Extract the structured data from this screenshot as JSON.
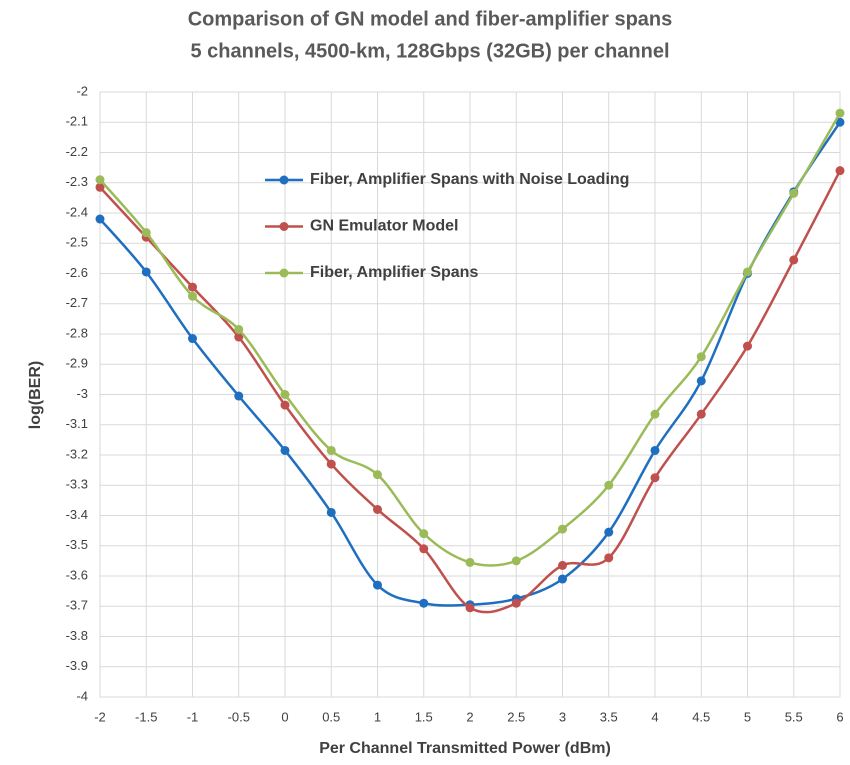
{
  "chart_data": {
    "type": "line",
    "title": "Comparison of GN model and fiber-amplifier spans",
    "subtitle": "5 channels, 4500-km, 128Gbps (32GB) per channel",
    "x_label": "Per Channel Transmitted Power (dBm)",
    "y_label": "log(BER)",
    "x": [
      -2,
      -1.5,
      -1,
      -0.5,
      0,
      0.5,
      1,
      1.5,
      2,
      2.5,
      3,
      3.5,
      4,
      4.5,
      5,
      5.5,
      6
    ],
    "series": [
      {
        "name": "Fiber, Amplifier Spans with Noise Loading",
        "color": "#1f6fc0",
        "values": [
          -2.42,
          -2.595,
          -2.815,
          -3.005,
          -3.185,
          -3.39,
          -3.63,
          -3.69,
          -3.695,
          -3.675,
          -3.61,
          -3.455,
          -3.185,
          -2.955,
          -2.6,
          -2.33,
          -2.1
        ]
      },
      {
        "name": "GN Emulator Model",
        "color": "#c0504d",
        "values": [
          -2.315,
          -2.48,
          -2.645,
          -2.81,
          -3.035,
          -3.23,
          -3.38,
          -3.51,
          -3.705,
          -3.69,
          -3.565,
          -3.54,
          -3.275,
          -3.065,
          -2.84,
          -2.555,
          -2.26
        ]
      },
      {
        "name": "Fiber, Amplifier Spans",
        "color": "#9bbb59",
        "values": [
          -2.29,
          -2.465,
          -2.675,
          -2.785,
          -3.0,
          -3.185,
          -3.265,
          -3.46,
          -3.555,
          -3.55,
          -3.445,
          -3.3,
          -3.065,
          -2.875,
          -2.595,
          -2.335,
          -2.07
        ]
      }
    ],
    "xlim": [
      -2,
      6
    ],
    "xticks": [
      -2,
      -1.5,
      -1,
      -0.5,
      0,
      0.5,
      1,
      1.5,
      2,
      2.5,
      3,
      3.5,
      4,
      4.5,
      5,
      5.5,
      6
    ],
    "ylim": [
      -4,
      -2
    ],
    "yticks": [
      -2,
      -2.1,
      -2.2,
      -2.3,
      -2.4,
      -2.5,
      -2.6,
      -2.7,
      -2.8,
      -2.9,
      -3,
      -3.1,
      -3.2,
      -3.3,
      -3.4,
      -3.5,
      -3.6,
      -3.7,
      -3.8,
      -3.9,
      -4
    ],
    "grid": true,
    "smooth": true
  }
}
